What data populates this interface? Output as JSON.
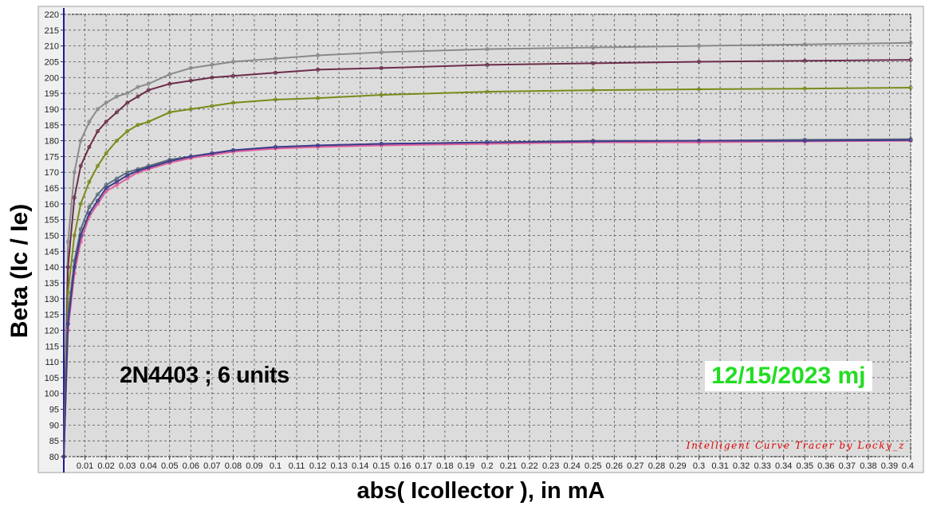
{
  "chart_data": {
    "type": "line",
    "title": "",
    "xlabel": "abs( Icollector ), in mA",
    "ylabel": "Beta  (Ic / Ie)",
    "xlim": [
      0,
      0.4
    ],
    "ylim": [
      80,
      220
    ],
    "x_ticks": [
      "0.01",
      "0.02",
      "0.03",
      "0.04",
      "0.05",
      "0.06",
      "0.07",
      "0.08",
      "0.09",
      "0.1",
      "0.11",
      "0.12",
      "0.13",
      "0.14",
      "0.15",
      "0.16",
      "0.17",
      "0.18",
      "0.19",
      "0.2",
      "0.21",
      "0.22",
      "0.23",
      "0.24",
      "0.25",
      "0.26",
      "0.27",
      "0.28",
      "0.29",
      "0.3",
      "0.31",
      "0.32",
      "0.33",
      "0.34",
      "0.35",
      "0.36",
      "0.37",
      "0.38",
      "0.39",
      "0.4"
    ],
    "y_ticks": [
      "80",
      "85",
      "90",
      "95",
      "100",
      "105",
      "110",
      "115",
      "120",
      "125",
      "130",
      "135",
      "140",
      "145",
      "150",
      "155",
      "160",
      "165",
      "170",
      "175",
      "180",
      "185",
      "190",
      "195",
      "200",
      "205",
      "210",
      "215",
      "220"
    ],
    "grid": true,
    "legend": "none",
    "series": [
      {
        "color": "#8a8a8a",
        "x": [
          0,
          0.002,
          0.005,
          0.008,
          0.012,
          0.016,
          0.02,
          0.025,
          0.03,
          0.035,
          0.04,
          0.05,
          0.06,
          0.07,
          0.08,
          0.1,
          0.12,
          0.15,
          0.2,
          0.25,
          0.3,
          0.35,
          0.4
        ],
        "y": [
          80,
          148,
          170,
          180,
          186,
          190,
          192,
          194,
          195,
          197,
          198,
          201,
          203,
          204,
          205,
          206,
          207,
          208,
          209,
          209.5,
          210,
          210.5,
          211
        ]
      },
      {
        "color": "#6b2d4a",
        "x": [
          0,
          0.002,
          0.005,
          0.008,
          0.012,
          0.016,
          0.02,
          0.025,
          0.03,
          0.035,
          0.04,
          0.05,
          0.06,
          0.07,
          0.08,
          0.1,
          0.12,
          0.15,
          0.2,
          0.25,
          0.3,
          0.35,
          0.4
        ],
        "y": [
          80,
          140,
          162,
          172,
          178,
          183,
          186,
          189,
          192,
          194,
          196,
          198,
          199,
          200,
          200.5,
          201.5,
          202.5,
          203,
          204,
          204.5,
          205,
          205.3,
          205.6
        ]
      },
      {
        "color": "#7a8a1a",
        "x": [
          0,
          0.002,
          0.005,
          0.008,
          0.012,
          0.016,
          0.02,
          0.025,
          0.03,
          0.035,
          0.04,
          0.05,
          0.06,
          0.07,
          0.08,
          0.1,
          0.12,
          0.15,
          0.2,
          0.25,
          0.3,
          0.35,
          0.4
        ],
        "y": [
          80,
          132,
          150,
          160,
          167,
          172,
          176,
          180,
          183,
          185,
          186,
          189,
          190,
          191,
          192,
          193,
          193.5,
          194.5,
          195.5,
          196,
          196.3,
          196.5,
          196.8
        ]
      },
      {
        "color": "#5a6e78",
        "x": [
          0,
          0.002,
          0.005,
          0.008,
          0.012,
          0.016,
          0.02,
          0.025,
          0.03,
          0.035,
          0.04,
          0.05,
          0.06,
          0.07,
          0.08,
          0.1,
          0.12,
          0.15,
          0.2,
          0.25,
          0.3,
          0.35,
          0.4
        ],
        "y": [
          80,
          125,
          142,
          152,
          159,
          163,
          166,
          168,
          170,
          171,
          172,
          174,
          175,
          176,
          177,
          178,
          178.5,
          179,
          179.5,
          180,
          180,
          180.3,
          180.5
        ]
      },
      {
        "color": "#e0609a",
        "x": [
          0,
          0.002,
          0.005,
          0.008,
          0.012,
          0.016,
          0.02,
          0.025,
          0.03,
          0.035,
          0.04,
          0.05,
          0.06,
          0.07,
          0.08,
          0.1,
          0.12,
          0.15,
          0.2,
          0.25,
          0.3,
          0.35,
          0.4
        ],
        "y": [
          80,
          120,
          138,
          148,
          156,
          160,
          164,
          166,
          168,
          170,
          171,
          173,
          174.5,
          175.5,
          176.5,
          177.5,
          178,
          178.5,
          179,
          179.5,
          179.5,
          179.8,
          180
        ]
      },
      {
        "color": "#3c3c8c",
        "x": [
          0,
          0.002,
          0.005,
          0.008,
          0.012,
          0.016,
          0.02,
          0.025,
          0.03,
          0.035,
          0.04,
          0.05,
          0.06,
          0.07,
          0.08,
          0.1,
          0.12,
          0.15,
          0.2,
          0.25,
          0.3,
          0.35,
          0.4
        ],
        "y": [
          80,
          122,
          140,
          150,
          157,
          161,
          165,
          167,
          169,
          170.5,
          171.5,
          173.5,
          175,
          176,
          177,
          178,
          178.5,
          179,
          179.5,
          179.8,
          180,
          180,
          180.2
        ]
      }
    ]
  },
  "annotations": {
    "device": "2N4403 ; 6 units",
    "date": "12/15/2023  mj",
    "credit": "Intelligent Curve Tracer by Locky_z"
  }
}
